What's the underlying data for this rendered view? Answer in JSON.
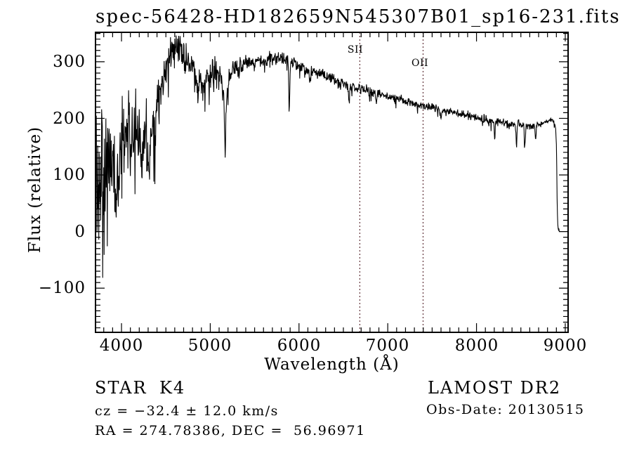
{
  "page": {
    "background": "#ffffff"
  },
  "header": {
    "title": "spec-56428-HD182659N545307B01_sp16-231.fits"
  },
  "footer": {
    "class_label": "STAR",
    "subclass": "K4",
    "survey": "LAMOST DR2",
    "cz_line": "cz = −32.4 ± 12.0 km/s",
    "obs_date_line": "Obs-Date: 20130515",
    "radec_line": "RA = 274.78386, DEC =  56.96971"
  },
  "chart_data": {
    "type": "line",
    "title": "spec-56428-HD182659N545307B01_sp16-231.fits",
    "xlabel": "Wavelength (Å)",
    "ylabel": "Flux (relative)",
    "xlim": [
      3707,
      9032
    ],
    "ylim": [
      -178,
      352
    ],
    "grid": false,
    "x_major_ticks": [
      4000,
      5000,
      6000,
      7000,
      8000,
      9000
    ],
    "x_tick_labels": [
      "4000",
      "5000",
      "6000",
      "7000",
      "8000",
      "9000"
    ],
    "x_minor_step": 100,
    "y_major_ticks": [
      -100,
      0,
      100,
      200,
      300
    ],
    "y_tick_labels": [
      "−100",
      "0",
      "100",
      "200",
      "300"
    ],
    "y_minor_step": 10,
    "line_color": "#000000",
    "frame_color": "#000000",
    "marker_color": "#6b4046",
    "line_markers": [
      {
        "label": "SII",
        "wavelength": 6685
      },
      {
        "label": "OII",
        "wavelength": 7398
      }
    ],
    "spectrum": {
      "wavelength_start": 3708,
      "wavelength_end": 8936,
      "wavelength_step": 4,
      "noise_seed": 20130515,
      "envelope": [
        [
          3708,
          120
        ],
        [
          3725,
          95
        ],
        [
          3740,
          110
        ],
        [
          3760,
          88
        ],
        [
          3780,
          108
        ],
        [
          3800,
          112
        ],
        [
          3850,
          118
        ],
        [
          3900,
          132
        ],
        [
          3950,
          138
        ],
        [
          4000,
          162
        ],
        [
          4050,
          178
        ],
        [
          4100,
          180
        ],
        [
          4150,
          172
        ],
        [
          4200,
          177
        ],
        [
          4250,
          171
        ],
        [
          4300,
          167
        ],
        [
          4350,
          193
        ],
        [
          4400,
          224
        ],
        [
          4450,
          258
        ],
        [
          4500,
          293
        ],
        [
          4550,
          314
        ],
        [
          4600,
          327
        ],
        [
          4650,
          321
        ],
        [
          4700,
          311
        ],
        [
          4750,
          299
        ],
        [
          4800,
          287
        ],
        [
          4850,
          271
        ],
        [
          4900,
          265
        ],
        [
          4950,
          269
        ],
        [
          5000,
          275
        ],
        [
          5050,
          279
        ],
        [
          5100,
          283
        ],
        [
          5150,
          281
        ],
        [
          5200,
          272
        ],
        [
          5250,
          283
        ],
        [
          5300,
          289
        ],
        [
          5350,
          293
        ],
        [
          5400,
          296
        ],
        [
          5500,
          298
        ],
        [
          5600,
          301
        ],
        [
          5700,
          305
        ],
        [
          5800,
          307
        ],
        [
          5900,
          299
        ],
        [
          6000,
          293
        ],
        [
          6100,
          286
        ],
        [
          6200,
          280
        ],
        [
          6300,
          274
        ],
        [
          6400,
          268
        ],
        [
          6500,
          262
        ],
        [
          6600,
          257
        ],
        [
          6700,
          252
        ],
        [
          6800,
          248
        ],
        [
          6900,
          244
        ],
        [
          7000,
          239
        ],
        [
          7100,
          234
        ],
        [
          7200,
          230
        ],
        [
          7300,
          226
        ],
        [
          7400,
          222
        ],
        [
          7500,
          219
        ],
        [
          7600,
          215
        ],
        [
          7700,
          212
        ],
        [
          7800,
          209
        ],
        [
          7900,
          206
        ],
        [
          8000,
          202
        ],
        [
          8100,
          198
        ],
        [
          8200,
          195
        ],
        [
          8300,
          192
        ],
        [
          8400,
          190
        ],
        [
          8500,
          188
        ],
        [
          8600,
          186
        ],
        [
          8700,
          188
        ],
        [
          8750,
          191
        ],
        [
          8800,
          195
        ],
        [
          8840,
          199
        ],
        [
          8870,
          195
        ],
        [
          8890,
          184
        ],
        [
          8902,
          148
        ],
        [
          8908,
          58
        ],
        [
          8915,
          14
        ],
        [
          8922,
          4
        ],
        [
          8936,
          1
        ]
      ],
      "noise_amplitude": [
        [
          3708,
          115
        ],
        [
          3750,
          120
        ],
        [
          3800,
          95
        ],
        [
          3850,
          85
        ],
        [
          3900,
          78
        ],
        [
          3950,
          70
        ],
        [
          4000,
          62
        ],
        [
          4100,
          58
        ],
        [
          4200,
          55
        ],
        [
          4300,
          52
        ],
        [
          4400,
          45
        ],
        [
          4500,
          36
        ],
        [
          4600,
          30
        ],
        [
          4700,
          27
        ],
        [
          4800,
          24
        ],
        [
          4900,
          22
        ],
        [
          5000,
          23
        ],
        [
          5100,
          26
        ],
        [
          5200,
          22
        ],
        [
          5300,
          17
        ],
        [
          5400,
          15
        ],
        [
          5600,
          13
        ],
        [
          5800,
          13
        ],
        [
          6000,
          11
        ],
        [
          6200,
          10
        ],
        [
          6400,
          10
        ],
        [
          6600,
          9
        ],
        [
          6800,
          9
        ],
        [
          7000,
          8
        ],
        [
          7300,
          7
        ],
        [
          7600,
          7
        ],
        [
          8000,
          7
        ],
        [
          8300,
          8
        ],
        [
          8500,
          8
        ],
        [
          8700,
          6
        ],
        [
          8800,
          5
        ],
        [
          8880,
          4
        ],
        [
          8936,
          2
        ]
      ],
      "absorption_features": [
        {
          "center": 3935,
          "depth": 85,
          "sigma": 12
        },
        {
          "center": 3970,
          "depth": 65,
          "sigma": 9
        },
        {
          "center": 4101,
          "depth": 50,
          "sigma": 8
        },
        {
          "center": 4227,
          "depth": 75,
          "sigma": 8
        },
        {
          "center": 4305,
          "depth": 65,
          "sigma": 11
        },
        {
          "center": 4340,
          "depth": 42,
          "sigma": 7
        },
        {
          "center": 4383,
          "depth": 52,
          "sigma": 6
        },
        {
          "center": 4861,
          "depth": 38,
          "sigma": 7
        },
        {
          "center": 5165,
          "depth": 52,
          "sigma": 26
        },
        {
          "center": 5168,
          "depth": 92,
          "sigma": 6
        },
        {
          "center": 5890,
          "depth": 78,
          "sigma": 6
        },
        {
          "center": 6122,
          "depth": 20,
          "sigma": 6
        },
        {
          "center": 6563,
          "depth": 30,
          "sigma": 6
        },
        {
          "center": 6870,
          "depth": 22,
          "sigma": 7
        },
        {
          "center": 7600,
          "depth": 15,
          "sigma": 9
        },
        {
          "center": 8205,
          "depth": 28,
          "sigma": 5
        },
        {
          "center": 8450,
          "depth": 42,
          "sigma": 5
        },
        {
          "center": 8545,
          "depth": 38,
          "sigma": 5
        },
        {
          "center": 8665,
          "depth": 30,
          "sigma": 5
        }
      ]
    }
  }
}
